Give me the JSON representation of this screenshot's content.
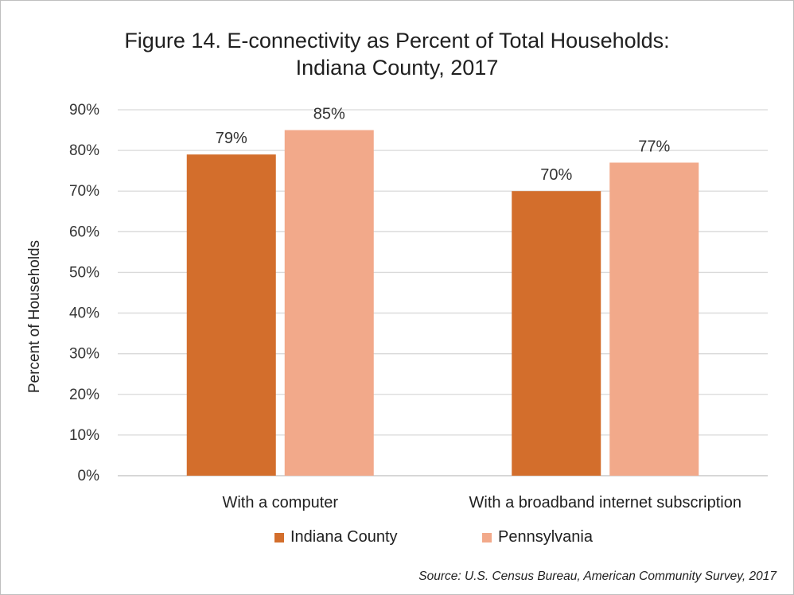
{
  "title_line1": "Figure 14. E-connectivity as Percent of Total Households:",
  "title_line2": "Indiana County, 2017",
  "source": "Source: U.S. Census Bureau, American Community Survey, 2017",
  "chart_data": {
    "type": "bar",
    "title": "Figure 14. E-connectivity as Percent of Total Households: Indiana County, 2017",
    "categories": [
      "With a computer",
      "With a broadband internet subscription"
    ],
    "series": [
      {
        "name": "Indiana County",
        "values": [
          79,
          70
        ],
        "labels": [
          "79%",
          "70%"
        ],
        "color": "#d36e2c"
      },
      {
        "name": "Pennsylvania",
        "values": [
          85,
          77
        ],
        "labels": [
          "85%",
          "77%"
        ],
        "color": "#f2a98a"
      }
    ],
    "ylabel": "Percent of Households",
    "xlabel": "",
    "ylim": [
      0,
      90
    ],
    "yticks": [
      0,
      10,
      20,
      30,
      40,
      50,
      60,
      70,
      80,
      90
    ],
    "ytick_labels": [
      "0%",
      "10%",
      "20%",
      "30%",
      "40%",
      "50%",
      "60%",
      "70%",
      "80%",
      "90%"
    ],
    "grid": true,
    "legend_position": "bottom"
  }
}
